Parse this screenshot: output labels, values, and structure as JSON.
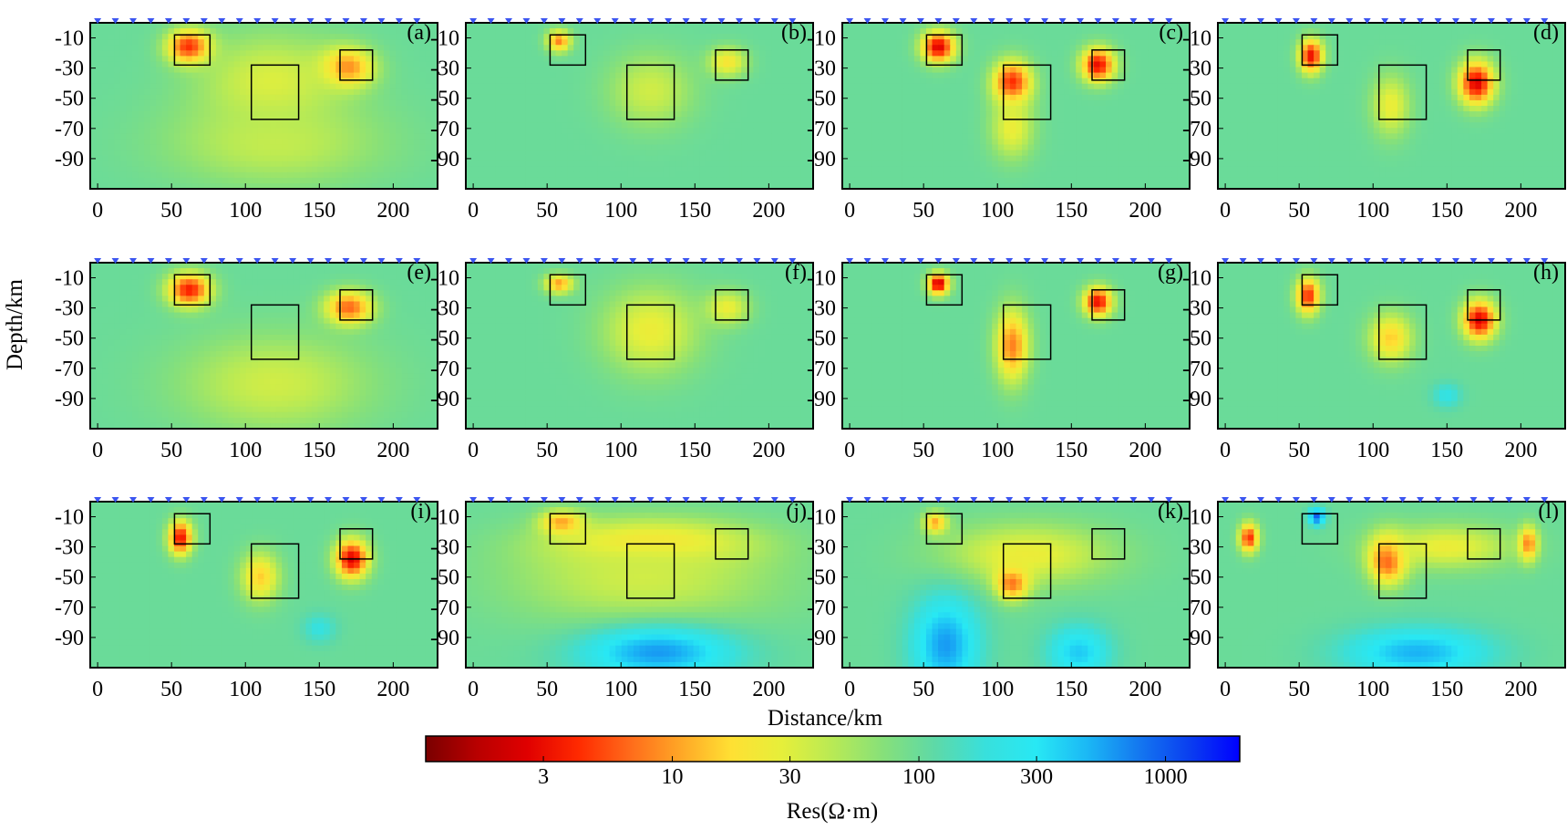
{
  "figure": {
    "ylabel": "Depth/km",
    "xlabel": "Distance/km",
    "colorbar": {
      "label": "Res(Ω·m)",
      "scale": "log",
      "range": [
        1,
        2000
      ],
      "ticks": [
        3,
        10,
        30,
        100,
        300,
        1000
      ],
      "tick_labels": [
        "3",
        "10",
        "30",
        "100",
        "300",
        "1000"
      ],
      "colors": [
        "#7a0000",
        "#b80000",
        "#e00000",
        "#ff2a00",
        "#ff6a1a",
        "#ffa626",
        "#ffe033",
        "#e6ef3a",
        "#b8ea55",
        "#86e07a",
        "#5ed9a7",
        "#38e0dc",
        "#28e8f4",
        "#1bb8f5",
        "#1479f0",
        "#0a3ff0",
        "#0000ff"
      ]
    }
  },
  "chart_data": {
    "type": "heatmap",
    "scale": "log",
    "units": "Ω·m",
    "background_value": 100,
    "xlim": [
      -5,
      230
    ],
    "ylim": [
      -110,
      0
    ],
    "xticks": [
      0,
      50,
      100,
      150,
      200
    ],
    "xtick_labels": [
      "0",
      "50",
      "100",
      "150",
      "200"
    ],
    "yticks": [
      -10,
      -30,
      -50,
      -70,
      -90
    ],
    "ytick_labels": [
      "-10",
      "-30",
      "-50",
      "-70",
      "-90"
    ],
    "stations": [
      0,
      12,
      24,
      36,
      48,
      60,
      72,
      84,
      96,
      108,
      120,
      132,
      144,
      156,
      168,
      180,
      192,
      204,
      216
    ],
    "boxes": [
      {
        "x": [
          52,
          76
        ],
        "y": [
          -8,
          -28
        ]
      },
      {
        "x": [
          104,
          136
        ],
        "y": [
          -28,
          -64
        ]
      },
      {
        "x": [
          164,
          186
        ],
        "y": [
          -18,
          -38
        ]
      }
    ],
    "panels": [
      {
        "label": "(a)",
        "features": [
          {
            "x": 62,
            "y": -16,
            "rx": 18,
            "ry": 14,
            "v": 3
          },
          {
            "x": 168,
            "y": -30,
            "rx": 22,
            "ry": 16,
            "v": 5
          },
          {
            "x": 118,
            "y": -40,
            "rx": 62,
            "ry": 40,
            "v": 30
          },
          {
            "x": 120,
            "y": -80,
            "rx": 90,
            "ry": 35,
            "v": 40
          }
        ]
      },
      {
        "label": "(b)",
        "features": [
          {
            "x": 58,
            "y": -12,
            "rx": 10,
            "ry": 9,
            "v": 8
          },
          {
            "x": 120,
            "y": -45,
            "rx": 35,
            "ry": 30,
            "v": 35
          },
          {
            "x": 172,
            "y": -26,
            "rx": 16,
            "ry": 12,
            "v": 20
          }
        ]
      },
      {
        "label": "(c)",
        "features": [
          {
            "x": 60,
            "y": -16,
            "rx": 14,
            "ry": 13,
            "v": 2.5
          },
          {
            "x": 110,
            "y": -40,
            "rx": 16,
            "ry": 18,
            "v": 3.5
          },
          {
            "x": 168,
            "y": -28,
            "rx": 14,
            "ry": 14,
            "v": 3
          },
          {
            "x": 110,
            "y": -70,
            "rx": 18,
            "ry": 25,
            "v": 25
          }
        ]
      },
      {
        "label": "(d)",
        "features": [
          {
            "x": 58,
            "y": -22,
            "rx": 10,
            "ry": 14,
            "v": 3
          },
          {
            "x": 170,
            "y": -40,
            "rx": 15,
            "ry": 18,
            "v": 2.5
          },
          {
            "x": 112,
            "y": -55,
            "rx": 16,
            "ry": 25,
            "v": 25
          }
        ]
      },
      {
        "label": "(e)",
        "features": [
          {
            "x": 62,
            "y": -18,
            "rx": 18,
            "ry": 14,
            "v": 3.5
          },
          {
            "x": 170,
            "y": -30,
            "rx": 20,
            "ry": 14,
            "v": 6
          },
          {
            "x": 120,
            "y": -80,
            "rx": 80,
            "ry": 40,
            "v": 35
          }
        ]
      },
      {
        "label": "(f)",
        "features": [
          {
            "x": 58,
            "y": -14,
            "rx": 12,
            "ry": 8,
            "v": 10
          },
          {
            "x": 120,
            "y": -45,
            "rx": 40,
            "ry": 35,
            "v": 25
          },
          {
            "x": 172,
            "y": -30,
            "rx": 18,
            "ry": 14,
            "v": 25
          }
        ]
      },
      {
        "label": "(g)",
        "features": [
          {
            "x": 60,
            "y": -14,
            "rx": 9,
            "ry": 9,
            "v": 2
          },
          {
            "x": 110,
            "y": -55,
            "rx": 14,
            "ry": 30,
            "v": 8
          },
          {
            "x": 168,
            "y": -26,
            "rx": 12,
            "ry": 12,
            "v": 3
          }
        ]
      },
      {
        "label": "(h)",
        "features": [
          {
            "x": 56,
            "y": -22,
            "rx": 10,
            "ry": 15,
            "v": 4
          },
          {
            "x": 172,
            "y": -38,
            "rx": 14,
            "ry": 16,
            "v": 2.5
          },
          {
            "x": 112,
            "y": -50,
            "rx": 18,
            "ry": 20,
            "v": 15
          },
          {
            "x": 150,
            "y": -88,
            "rx": 12,
            "ry": 10,
            "v": 220
          }
        ]
      },
      {
        "label": "(i)",
        "features": [
          {
            "x": 56,
            "y": -24,
            "rx": 10,
            "ry": 14,
            "v": 3
          },
          {
            "x": 172,
            "y": -38,
            "rx": 14,
            "ry": 16,
            "v": 2.5
          },
          {
            "x": 110,
            "y": -50,
            "rx": 16,
            "ry": 20,
            "v": 15
          },
          {
            "x": 150,
            "y": -84,
            "rx": 14,
            "ry": 12,
            "v": 200
          }
        ]
      },
      {
        "label": "(j)",
        "features": [
          {
            "x": 120,
            "y": -28,
            "rx": 80,
            "ry": 18,
            "v": 12
          },
          {
            "x": 60,
            "y": -14,
            "rx": 18,
            "ry": 10,
            "v": 8
          },
          {
            "x": 115,
            "y": -50,
            "rx": 110,
            "ry": 40,
            "v": 35
          },
          {
            "x": 125,
            "y": -100,
            "rx": 65,
            "ry": 22,
            "v": 600
          }
        ]
      },
      {
        "label": "(k)",
        "features": [
          {
            "x": 110,
            "y": -52,
            "rx": 14,
            "ry": 15,
            "v": 3
          },
          {
            "x": 58,
            "y": -14,
            "rx": 10,
            "ry": 9,
            "v": 10
          },
          {
            "x": 120,
            "y": -35,
            "rx": 70,
            "ry": 25,
            "v": 25
          },
          {
            "x": 65,
            "y": -95,
            "rx": 28,
            "ry": 40,
            "v": 600
          },
          {
            "x": 155,
            "y": -100,
            "rx": 26,
            "ry": 22,
            "v": 400
          }
        ]
      },
      {
        "label": "(l)",
        "features": [
          {
            "x": 16,
            "y": -24,
            "rx": 8,
            "ry": 12,
            "v": 4
          },
          {
            "x": 62,
            "y": -10,
            "rx": 7,
            "ry": 7,
            "v": 1000
          },
          {
            "x": 110,
            "y": -38,
            "rx": 16,
            "ry": 20,
            "v": 4
          },
          {
            "x": 205,
            "y": -28,
            "rx": 8,
            "ry": 14,
            "v": 6
          },
          {
            "x": 150,
            "y": -30,
            "rx": 55,
            "ry": 18,
            "v": 25
          },
          {
            "x": 130,
            "y": -100,
            "rx": 60,
            "ry": 20,
            "v": 500
          }
        ]
      }
    ]
  }
}
